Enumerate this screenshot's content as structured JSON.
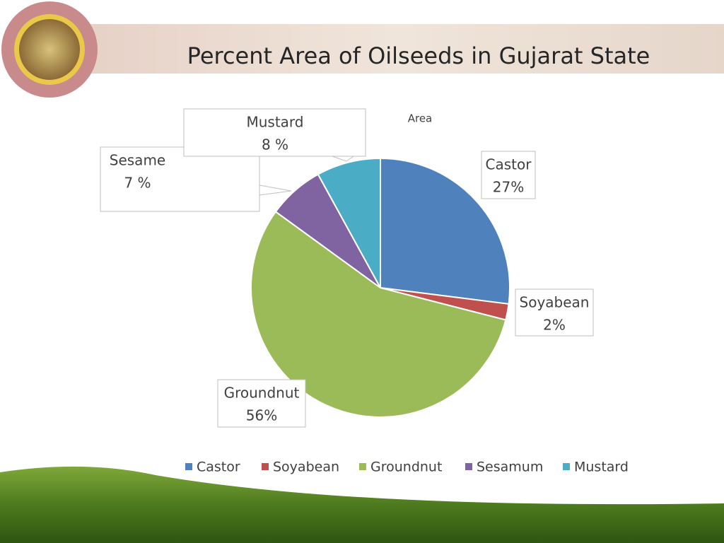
{
  "slide": {
    "title": "Percent Area of Oilseeds in Gujarat State"
  },
  "chart_data": {
    "type": "pie",
    "title": "Area",
    "categories": [
      "Castor",
      "Soyabean",
      "Groundnut",
      "Sesamum",
      "Mustard"
    ],
    "values": [
      27,
      2,
      56,
      7,
      8
    ],
    "value_labels": [
      "27%",
      "2%",
      "56%",
      "7 %",
      "8 %"
    ],
    "data_label_names": [
      "Castor",
      "Soyabean",
      "Groundnut",
      "Sesame",
      "Mustard"
    ],
    "colors": [
      "#4f81bd",
      "#c0504d",
      "#9bbb59",
      "#8064a2",
      "#4bacc6"
    ],
    "legend": "bottom"
  }
}
